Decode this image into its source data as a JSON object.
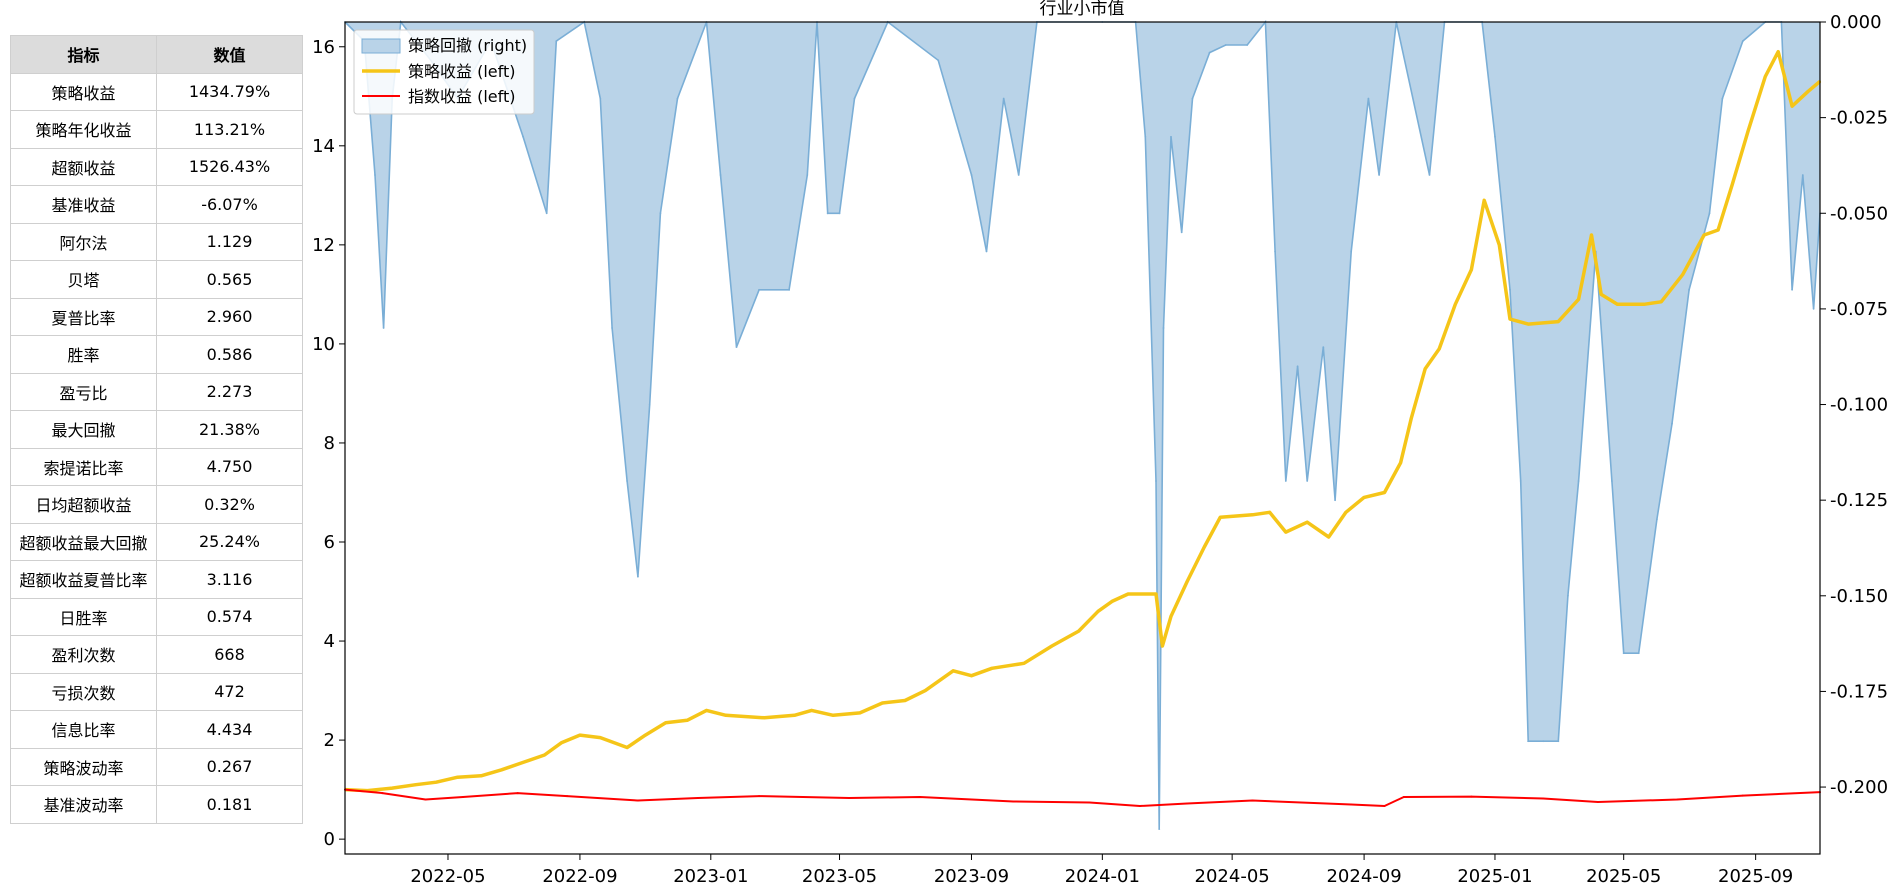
{
  "table": {
    "headers": [
      "指标",
      "数值"
    ],
    "rows": [
      [
        "策略收益",
        "1434.79%"
      ],
      [
        "策略年化收益",
        "113.21%"
      ],
      [
        "超额收益",
        "1526.43%"
      ],
      [
        "基准收益",
        "-6.07%"
      ],
      [
        "阿尔法",
        "1.129"
      ],
      [
        "贝塔",
        "0.565"
      ],
      [
        "夏普比率",
        "2.960"
      ],
      [
        "胜率",
        "0.586"
      ],
      [
        "盈亏比",
        "2.273"
      ],
      [
        "最大回撤",
        "21.38%"
      ],
      [
        "索提诺比率",
        "4.750"
      ],
      [
        "日均超额收益",
        "0.32%"
      ],
      [
        "超额收益最大回撤",
        "25.24%"
      ],
      [
        "超额收益夏普比率",
        "3.116"
      ],
      [
        "日胜率",
        "0.574"
      ],
      [
        "盈利次数",
        "668"
      ],
      [
        "亏损次数",
        "472"
      ],
      [
        "信息比率",
        "4.434"
      ],
      [
        "策略波动率",
        "0.267"
      ],
      [
        "基准波动率",
        "0.181"
      ]
    ]
  },
  "chart_data": {
    "type": "line",
    "title": "行业小市值",
    "legend": {
      "placement": "top-left",
      "entries": [
        "策略回撤 (right)",
        "策略收益 (left)",
        "指数收益 (left)"
      ]
    },
    "x_range": [
      "2022-01-25",
      "2025-10-31"
    ],
    "x_ticks": [
      "2022-05",
      "2022-09",
      "2023-01",
      "2023-05",
      "2023-09",
      "2024-01",
      "2024-05",
      "2024-09",
      "2025-01",
      "2025-05",
      "2025-09"
    ],
    "y_left": {
      "range": [
        -0.3,
        16.5
      ],
      "ticks": [
        0,
        2,
        4,
        6,
        8,
        10,
        12,
        14,
        16
      ]
    },
    "y_right": {
      "range": [
        -0.2175,
        0.0
      ],
      "ticks": [
        "0.000",
        "-0.025",
        "-0.050",
        "-0.075",
        "-0.100",
        "-0.125",
        "-0.150",
        "-0.175",
        "-0.200"
      ]
    },
    "colors": {
      "strategy": "#f5c518",
      "index": "#ff0000",
      "drawdown_fill": "#b9d3e8",
      "drawdown_line": "#7aaed6"
    },
    "series": [
      {
        "name": "策略收益 (left)",
        "axis": "left",
        "points": [
          [
            "2022-01-25",
            1.0
          ],
          [
            "2022-02-15",
            0.98
          ],
          [
            "2022-03-10",
            1.03
          ],
          [
            "2022-04-01",
            1.1
          ],
          [
            "2022-04-20",
            1.15
          ],
          [
            "2022-05-10",
            1.25
          ],
          [
            "2022-06-01",
            1.28
          ],
          [
            "2022-06-20",
            1.4
          ],
          [
            "2022-07-10",
            1.55
          ],
          [
            "2022-07-30",
            1.7
          ],
          [
            "2022-08-15",
            1.95
          ],
          [
            "2022-09-01",
            2.1
          ],
          [
            "2022-09-20",
            2.05
          ],
          [
            "2022-10-15",
            1.85
          ],
          [
            "2022-11-01",
            2.1
          ],
          [
            "2022-11-20",
            2.35
          ],
          [
            "2022-12-10",
            2.4
          ],
          [
            "2022-12-28",
            2.6
          ],
          [
            "2023-01-15",
            2.5
          ],
          [
            "2023-02-20",
            2.45
          ],
          [
            "2023-03-20",
            2.5
          ],
          [
            "2023-04-05",
            2.6
          ],
          [
            "2023-04-25",
            2.5
          ],
          [
            "2023-05-20",
            2.55
          ],
          [
            "2023-06-10",
            2.75
          ],
          [
            "2023-07-01",
            2.8
          ],
          [
            "2023-07-20",
            3.0
          ],
          [
            "2023-08-15",
            3.4
          ],
          [
            "2023-09-01",
            3.3
          ],
          [
            "2023-09-20",
            3.45
          ],
          [
            "2023-10-20",
            3.55
          ],
          [
            "2023-11-15",
            3.9
          ],
          [
            "2023-12-10",
            4.2
          ],
          [
            "2023-12-28",
            4.6
          ],
          [
            "2024-01-10",
            4.8
          ],
          [
            "2024-01-25",
            4.95
          ],
          [
            "2024-02-20",
            4.95
          ],
          [
            "2024-02-26",
            3.9
          ],
          [
            "2024-03-05",
            4.5
          ],
          [
            "2024-03-20",
            5.2
          ],
          [
            "2024-04-05",
            5.9
          ],
          [
            "2024-04-20",
            6.5
          ],
          [
            "2024-05-20",
            6.55
          ],
          [
            "2024-06-05",
            6.6
          ],
          [
            "2024-06-20",
            6.2
          ],
          [
            "2024-07-10",
            6.4
          ],
          [
            "2024-07-30",
            6.1
          ],
          [
            "2024-08-15",
            6.6
          ],
          [
            "2024-09-01",
            6.9
          ],
          [
            "2024-09-20",
            7.0
          ],
          [
            "2024-10-05",
            7.6
          ],
          [
            "2024-10-15",
            8.5
          ],
          [
            "2024-10-28",
            9.5
          ],
          [
            "2024-11-10",
            9.9
          ],
          [
            "2024-11-25",
            10.8
          ],
          [
            "2024-12-10",
            11.5
          ],
          [
            "2024-12-22",
            12.9
          ],
          [
            "2025-01-05",
            12.0
          ],
          [
            "2025-01-15",
            10.5
          ],
          [
            "2025-02-01",
            10.4
          ],
          [
            "2025-03-01",
            10.45
          ],
          [
            "2025-03-20",
            10.9
          ],
          [
            "2025-04-01",
            12.2
          ],
          [
            "2025-04-10",
            11.0
          ],
          [
            "2025-04-25",
            10.8
          ],
          [
            "2025-05-20",
            10.8
          ],
          [
            "2025-06-05",
            10.85
          ],
          [
            "2025-06-25",
            11.4
          ],
          [
            "2025-07-15",
            12.2
          ],
          [
            "2025-07-28",
            12.3
          ],
          [
            "2025-08-10",
            13.2
          ],
          [
            "2025-08-25",
            14.3
          ],
          [
            "2025-09-10",
            15.4
          ],
          [
            "2025-09-22",
            15.9
          ],
          [
            "2025-10-05",
            14.8
          ],
          [
            "2025-10-20",
            15.1
          ],
          [
            "2025-10-31",
            15.3
          ]
        ]
      },
      {
        "name": "指数收益 (left)",
        "axis": "left",
        "points": [
          [
            "2022-01-25",
            1.0
          ],
          [
            "2022-03-01",
            0.93
          ],
          [
            "2022-04-10",
            0.8
          ],
          [
            "2022-05-15",
            0.85
          ],
          [
            "2022-07-05",
            0.93
          ],
          [
            "2022-08-20",
            0.87
          ],
          [
            "2022-10-25",
            0.78
          ],
          [
            "2022-12-20",
            0.83
          ],
          [
            "2023-02-15",
            0.87
          ],
          [
            "2023-05-10",
            0.83
          ],
          [
            "2023-07-15",
            0.85
          ],
          [
            "2023-10-10",
            0.76
          ],
          [
            "2023-12-20",
            0.74
          ],
          [
            "2024-02-05",
            0.67
          ],
          [
            "2024-03-20",
            0.72
          ],
          [
            "2024-05-20",
            0.78
          ],
          [
            "2024-08-20",
            0.7
          ],
          [
            "2024-09-20",
            0.67
          ],
          [
            "2024-10-08",
            0.85
          ],
          [
            "2024-12-10",
            0.86
          ],
          [
            "2025-02-15",
            0.82
          ],
          [
            "2025-04-07",
            0.75
          ],
          [
            "2025-06-20",
            0.8
          ],
          [
            "2025-08-20",
            0.88
          ],
          [
            "2025-10-31",
            0.95
          ]
        ]
      },
      {
        "name": "策略回撤 (right)",
        "axis": "right",
        "type": "area",
        "points": [
          [
            "2022-01-25",
            0.0
          ],
          [
            "2022-02-12",
            -0.005
          ],
          [
            "2022-02-22",
            -0.04
          ],
          [
            "2022-03-02",
            -0.08
          ],
          [
            "2022-03-10",
            -0.02
          ],
          [
            "2022-03-18",
            -0.0
          ],
          [
            "2022-04-15",
            -0.01
          ],
          [
            "2022-05-10",
            -0.02
          ],
          [
            "2022-06-10",
            -0.005
          ],
          [
            "2022-07-10",
            -0.03
          ],
          [
            "2022-08-01",
            -0.05
          ],
          [
            "2022-08-10",
            -0.005
          ],
          [
            "2022-09-05",
            0.0
          ],
          [
            "2022-09-20",
            -0.02
          ],
          [
            "2022-10-01",
            -0.08
          ],
          [
            "2022-10-15",
            -0.12
          ],
          [
            "2022-10-25",
            -0.145
          ],
          [
            "2022-11-05",
            -0.1
          ],
          [
            "2022-11-15",
            -0.05
          ],
          [
            "2022-12-01",
            -0.02
          ],
          [
            "2022-12-28",
            0.0
          ],
          [
            "2023-01-10",
            -0.04
          ],
          [
            "2023-01-25",
            -0.085
          ],
          [
            "2023-02-15",
            -0.07
          ],
          [
            "2023-03-15",
            -0.07
          ],
          [
            "2023-04-01",
            -0.04
          ],
          [
            "2023-04-10",
            -0.0
          ],
          [
            "2023-04-20",
            -0.05
          ],
          [
            "2023-05-01",
            -0.05
          ],
          [
            "2023-05-15",
            -0.02
          ],
          [
            "2023-06-15",
            0.0
          ],
          [
            "2023-08-01",
            -0.01
          ],
          [
            "2023-09-01",
            -0.04
          ],
          [
            "2023-09-15",
            -0.06
          ],
          [
            "2023-10-01",
            -0.02
          ],
          [
            "2023-10-15",
            -0.04
          ],
          [
            "2023-11-01",
            -0.0
          ],
          [
            "2024-01-01",
            0.0
          ],
          [
            "2024-02-01",
            -0.0
          ],
          [
            "2024-02-10",
            -0.03
          ],
          [
            "2024-02-20",
            -0.12
          ],
          [
            "2024-02-23",
            -0.211
          ],
          [
            "2024-02-27",
            -0.08
          ],
          [
            "2024-03-05",
            -0.03
          ],
          [
            "2024-03-15",
            -0.055
          ],
          [
            "2024-03-25",
            -0.02
          ],
          [
            "2024-04-10",
            -0.008
          ],
          [
            "2024-04-25",
            -0.006
          ],
          [
            "2024-05-15",
            -0.006
          ],
          [
            "2024-06-01",
            -0.0
          ],
          [
            "2024-06-10",
            -0.06
          ],
          [
            "2024-06-20",
            -0.12
          ],
          [
            "2024-07-01",
            -0.09
          ],
          [
            "2024-07-10",
            -0.12
          ],
          [
            "2024-07-25",
            -0.085
          ],
          [
            "2024-08-05",
            -0.125
          ],
          [
            "2024-08-20",
            -0.06
          ],
          [
            "2024-09-05",
            -0.02
          ],
          [
            "2024-09-15",
            -0.04
          ],
          [
            "2024-10-01",
            -0.0
          ],
          [
            "2024-11-01",
            -0.04
          ],
          [
            "2024-11-15",
            -0.0
          ],
          [
            "2024-12-20",
            0.0
          ],
          [
            "2025-01-01",
            -0.03
          ],
          [
            "2025-01-15",
            -0.07
          ],
          [
            "2025-01-25",
            -0.12
          ],
          [
            "2025-02-01",
            -0.188
          ],
          [
            "2025-02-15",
            -0.188
          ],
          [
            "2025-03-01",
            -0.188
          ],
          [
            "2025-03-10",
            -0.15
          ],
          [
            "2025-03-20",
            -0.12
          ],
          [
            "2025-04-05",
            -0.06
          ],
          [
            "2025-04-20",
            -0.12
          ],
          [
            "2025-05-01",
            -0.165
          ],
          [
            "2025-05-15",
            -0.165
          ],
          [
            "2025-06-01",
            -0.13
          ],
          [
            "2025-06-15",
            -0.105
          ],
          [
            "2025-07-01",
            -0.07
          ],
          [
            "2025-07-20",
            -0.05
          ],
          [
            "2025-08-01",
            -0.02
          ],
          [
            "2025-08-20",
            -0.005
          ],
          [
            "2025-09-10",
            0.0
          ],
          [
            "2025-09-25",
            -0.0
          ],
          [
            "2025-10-05",
            -0.07
          ],
          [
            "2025-10-15",
            -0.04
          ],
          [
            "2025-10-25",
            -0.075
          ],
          [
            "2025-10-31",
            -0.05
          ]
        ]
      }
    ]
  }
}
